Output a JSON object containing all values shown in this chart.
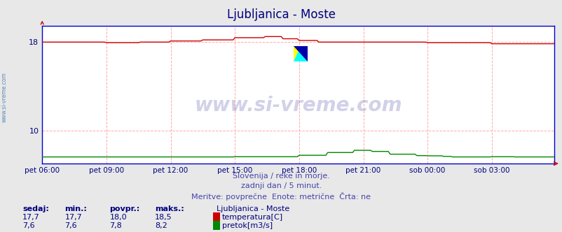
{
  "title": "Ljubljanica - Moste",
  "title_color": "#000080",
  "title_fontsize": 12,
  "bg_color": "#e8e8e8",
  "plot_bg_color": "#ffffff",
  "grid_color": "#ffaaaa",
  "axis_color": "#0000cc",
  "x_label_color": "#000080",
  "y_label_color": "#000080",
  "ylim_min": 7.0,
  "ylim_max": 19.5,
  "ytick_vals": [
    10,
    18
  ],
  "n_points": 288,
  "subtitle_lines": [
    "Slovenija / reke in morje.",
    "zadnji dan / 5 minut.",
    "Meritve: povprečne  Enote: metrične  Črta: ne"
  ],
  "subtitle_color": "#4444aa",
  "watermark_text": "www.si-vreme.com",
  "watermark_color": "#000080",
  "left_watermark_color": "#4477aa",
  "x_tick_labels": [
    "pet 06:00",
    "pet 09:00",
    "pet 12:00",
    "pet 15:00",
    "pet 18:00",
    "pet 21:00",
    "sob 00:00",
    "sob 03:00"
  ],
  "x_tick_pos": [
    0,
    36,
    72,
    108,
    144,
    180,
    216,
    252
  ],
  "temp_color": "#cc0000",
  "flow_color": "#008800",
  "legend_title": "Ljubljanica - Moste",
  "stats_headers": [
    "sedaj:",
    "min.:",
    "povpr.:",
    "maks.:"
  ],
  "temp_stats": [
    "17,7",
    "17,7",
    "18,0",
    "18,5"
  ],
  "flow_stats": [
    "7,6",
    "7,6",
    "7,8",
    "8,2"
  ],
  "temp_label": "temperatura[C]",
  "flow_label": "pretok[m3/s]",
  "stats_color": "#000080",
  "arrow_color": "#cc0000"
}
